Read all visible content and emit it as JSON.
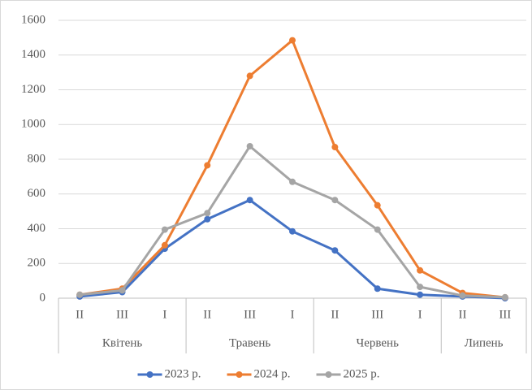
{
  "chart_data": {
    "type": "line",
    "groups": [
      {
        "label": "Квітень",
        "categories": [
          "II",
          "III",
          "I"
        ]
      },
      {
        "label": "Травень",
        "categories": [
          "II",
          "III",
          "I"
        ]
      },
      {
        "label": "Червень",
        "categories": [
          "II",
          "III",
          "I"
        ]
      },
      {
        "label": "Липень",
        "categories": [
          "II",
          "III"
        ]
      }
    ],
    "series": [
      {
        "name": "2023 р.",
        "color": "#4472c4",
        "values": [
          10,
          35,
          285,
          455,
          565,
          385,
          275,
          55,
          20,
          10,
          0
        ]
      },
      {
        "name": "2024 р.",
        "color": "#ed7d31",
        "values": [
          20,
          55,
          305,
          765,
          1280,
          1485,
          870,
          535,
          160,
          30,
          5
        ]
      },
      {
        "name": "2025 р.",
        "color": "#a5a5a5",
        "values": [
          20,
          45,
          395,
          490,
          875,
          670,
          565,
          395,
          65,
          15,
          5
        ]
      }
    ],
    "ylim": [
      0,
      1600
    ],
    "yticks": [
      0,
      200,
      400,
      600,
      800,
      1000,
      1200,
      1400,
      1600
    ],
    "grid": true,
    "legend": "bottom"
  }
}
